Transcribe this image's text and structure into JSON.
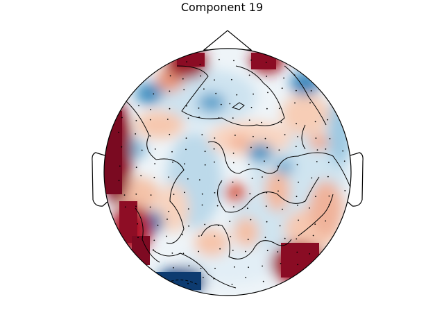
{
  "figure": {
    "title": "Component 19"
  },
  "colors": {
    "deep_red": "#67001f",
    "red": "#b2182b",
    "light_red": "#f4a582",
    "pale_red": "#fddbc7",
    "white": "#f7f7f7",
    "pale_blue": "#d1e5f0",
    "light_blue": "#92c5de",
    "blue": "#4393c3",
    "deep_blue": "#053061",
    "outline": "#000000"
  }
}
